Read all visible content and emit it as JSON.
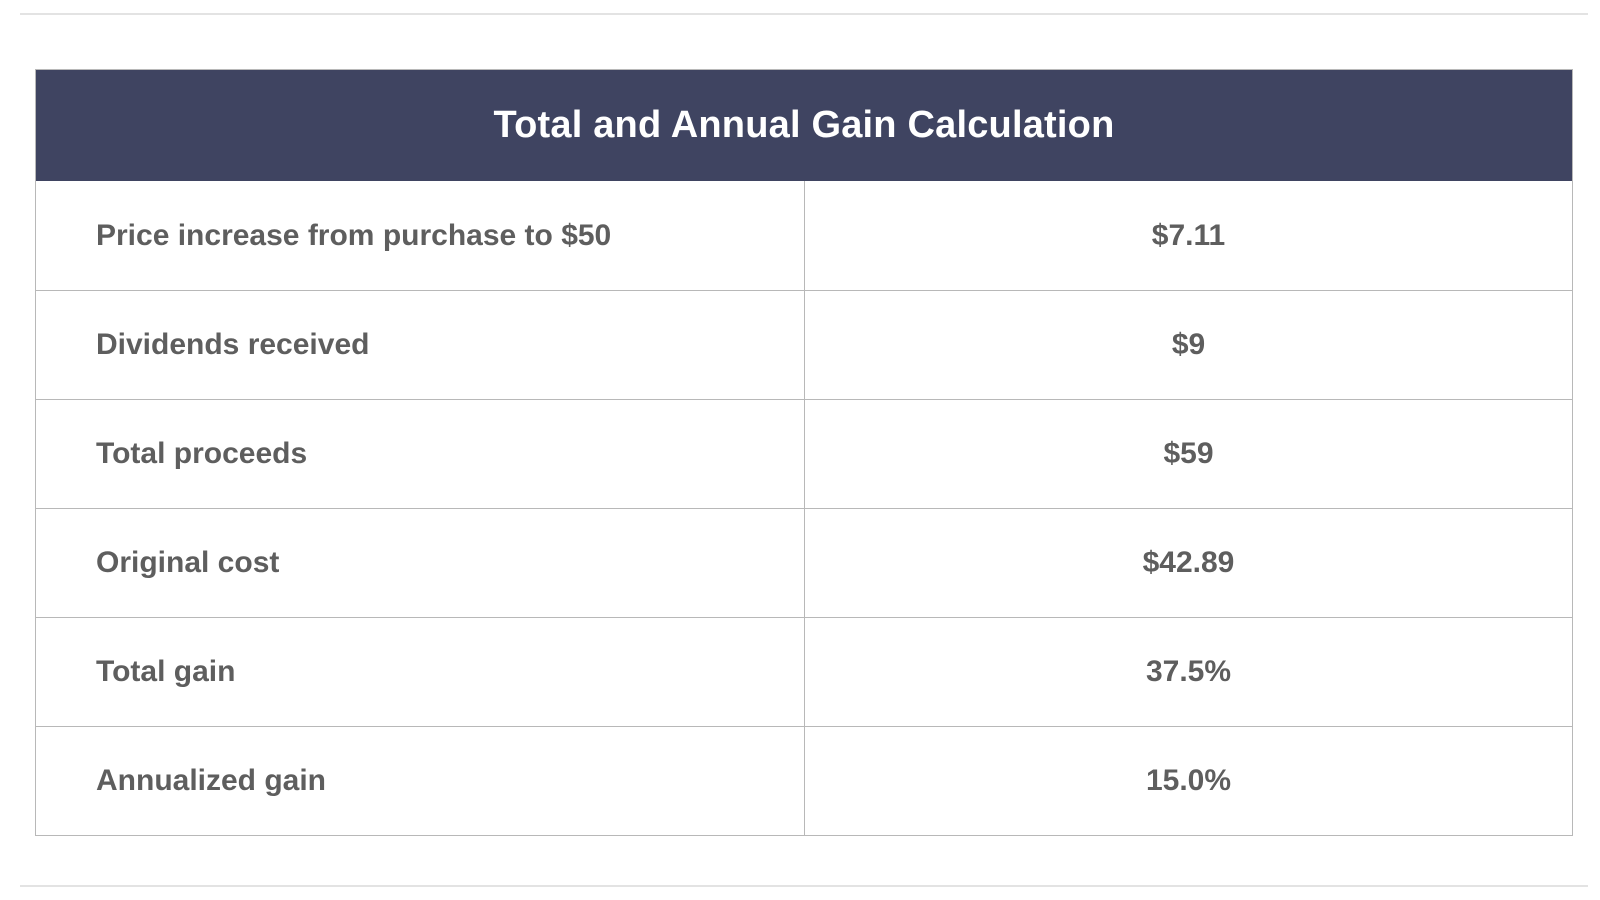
{
  "table": {
    "title": "Total and Annual Gain Calculation",
    "rows": [
      {
        "label": "Price increase from purchase to $50",
        "value": "$7.11"
      },
      {
        "label": "Dividends received",
        "value": "$9"
      },
      {
        "label": "Total proceeds",
        "value": "$59"
      },
      {
        "label": "Original cost",
        "value": "$42.89"
      },
      {
        "label": "Total gain",
        "value": "37.5%"
      },
      {
        "label": "Annualized gain",
        "value": "15.0%"
      }
    ]
  },
  "colors": {
    "header_background": "#3f4461",
    "header_text": "#ffffff",
    "body_text": "#5e5e5e",
    "border": "#b8b8b8"
  }
}
